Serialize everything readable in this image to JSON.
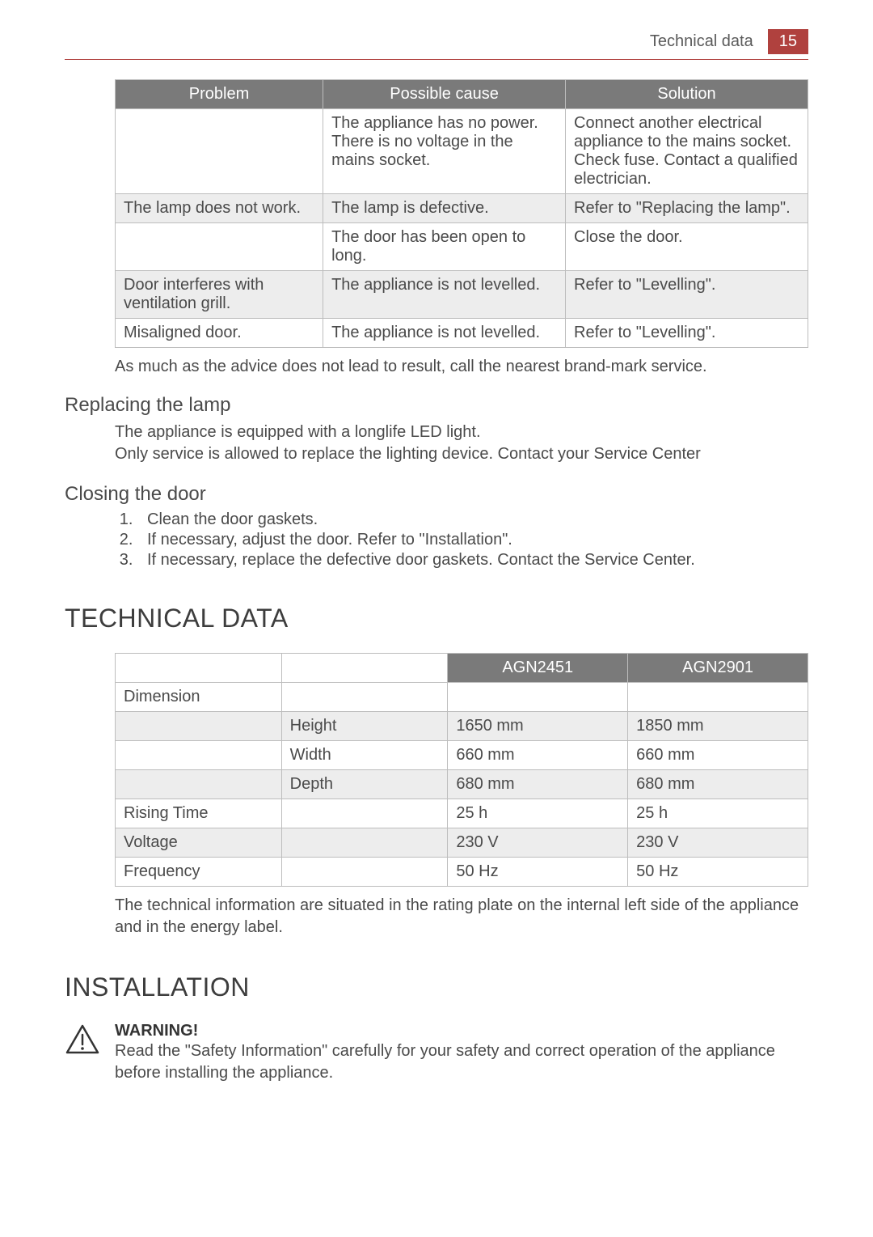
{
  "header": {
    "title": "Technical data",
    "page_number": "15"
  },
  "trouble_table": {
    "headers": [
      "Problem",
      "Possible cause",
      "Solution"
    ],
    "rows": [
      {
        "alt": false,
        "problem": "",
        "cause": "The appliance has no power. There is no voltage in the mains socket.",
        "solution": "Connect another electrical appliance to the mains socket. Check fuse. Contact a qualified electrician."
      },
      {
        "alt": true,
        "problem": "The lamp does not work.",
        "cause": "The lamp is defective.",
        "solution": "Refer to \"Replacing the lamp\"."
      },
      {
        "alt": false,
        "problem": "",
        "cause": "The door has been open to long.",
        "solution": "Close the door."
      },
      {
        "alt": true,
        "problem": "Door interferes with ventilation grill.",
        "cause": "The appliance is not levelled.",
        "solution": "Refer to \"Levelling\"."
      },
      {
        "alt": false,
        "problem": "Misaligned door.",
        "cause": "The appliance is not levelled.",
        "solution": "Refer to \"Levelling\"."
      }
    ]
  },
  "advice_note": "As much as the advice does not lead to result, call the nearest brand-mark service.",
  "replace_lamp": {
    "heading": "Replacing the lamp",
    "line1": "The appliance is equipped with a longlife LED light.",
    "line2": "Only service is allowed to replace the lighting device. Contact your Service Center"
  },
  "close_door": {
    "heading": "Closing the door",
    "steps": [
      "Clean the door gaskets.",
      "If necessary, adjust the door. Refer to \"Installation\".",
      "If necessary, replace the defective door gaskets. Contact the Service Center."
    ]
  },
  "tech_data": {
    "heading": "TECHNICAL DATA",
    "col_headers": [
      "",
      "",
      "AGN2451",
      "AGN2901"
    ],
    "rows": [
      {
        "alt": false,
        "c0": "Dimension",
        "c1": "",
        "c2": "",
        "c3": ""
      },
      {
        "alt": true,
        "c0": "",
        "c1": "Height",
        "c2": "1650 mm",
        "c3": "1850 mm"
      },
      {
        "alt": false,
        "c0": "",
        "c1": "Width",
        "c2": "660 mm",
        "c3": "660 mm"
      },
      {
        "alt": true,
        "c0": "",
        "c1": "Depth",
        "c2": "680 mm",
        "c3": "680 mm"
      },
      {
        "alt": false,
        "c0": "Rising Time",
        "c1": "",
        "c2": "25 h",
        "c3": "25 h"
      },
      {
        "alt": true,
        "c0": "Voltage",
        "c1": "",
        "c2": "230 V",
        "c3": "230 V"
      },
      {
        "alt": false,
        "c0": "Frequency",
        "c1": "",
        "c2": "50 Hz",
        "c3": "50 Hz"
      }
    ],
    "note": "The technical information are situated in the rating plate on the internal left side of the appliance and in the energy label."
  },
  "installation": {
    "heading": "INSTALLATION",
    "warning_label": "WARNING!",
    "warning_text": "Read the \"Safety Information\" carefully for your safety and correct operation of the appliance before installing the appliance."
  },
  "colors": {
    "accent": "#b0413e",
    "header_bg": "#7a7a7a",
    "border": "#bdbdbd",
    "alt_row": "#ededed",
    "text": "#4a4a4a"
  }
}
